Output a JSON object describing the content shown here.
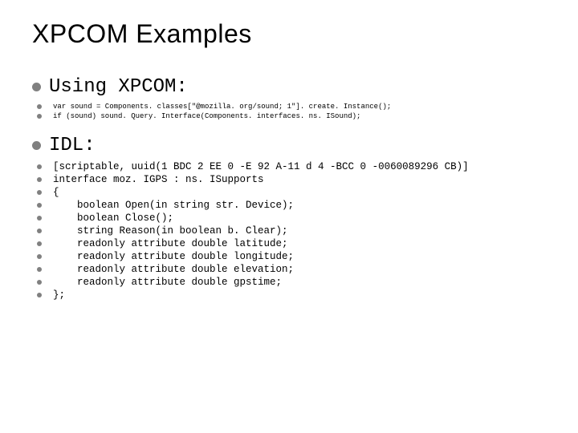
{
  "title": "XPCOM Examples",
  "section1": {
    "heading": "Using XPCOM:",
    "lines": [
      "var sound = Components. classes[\"@mozilla. org/sound; 1\"]. create. Instance();",
      "if (sound) sound. Query. Interface(Components. interfaces. ns. ISound);"
    ]
  },
  "section2": {
    "heading": "IDL:",
    "lines": [
      "[scriptable, uuid(1 BDC 2 EE 0 -E 92 A-11 d 4 -BCC 0 -0060089296 CB)]",
      "interface moz. IGPS : ns. ISupports",
      "{",
      "    boolean Open(in string str. Device);",
      "    boolean Close();",
      "    string Reason(in boolean b. Clear);",
      "    readonly attribute double latitude;",
      "    readonly attribute double longitude;",
      "    readonly attribute double elevation;",
      "    readonly attribute double gpstime;",
      "};"
    ]
  },
  "colors": {
    "bullet": "#808080",
    "text": "#000000",
    "background": "#ffffff"
  },
  "typography": {
    "title_fontsize": 32,
    "heading_fontsize": 24,
    "tiny_code_fontsize": 9,
    "small_code_fontsize": 12.5,
    "mono_family": "Courier New",
    "sans_family": "Arial"
  }
}
